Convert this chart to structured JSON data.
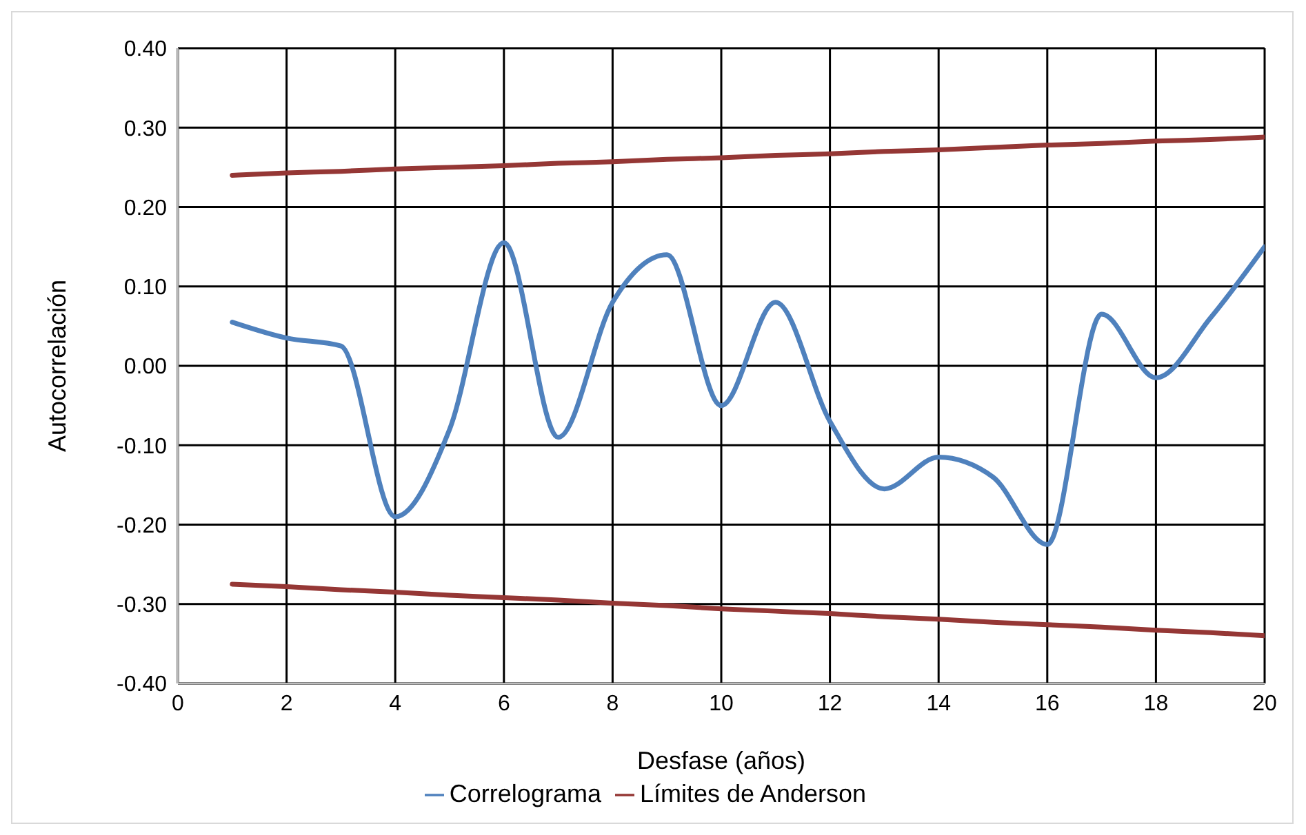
{
  "chart_data": {
    "type": "line",
    "xlabel": "Desfase (años)",
    "ylabel": "Autocorrelación",
    "x": [
      1,
      2,
      3,
      4,
      5,
      6,
      7,
      8,
      9,
      10,
      11,
      12,
      13,
      14,
      15,
      16,
      17,
      18,
      19,
      20
    ],
    "series": [
      {
        "name": "Correlograma",
        "color": "#4f81bd",
        "values": [
          0.055,
          0.035,
          0.025,
          -0.19,
          -0.08,
          0.155,
          -0.09,
          0.08,
          0.14,
          -0.05,
          0.08,
          -0.07,
          -0.155,
          -0.115,
          -0.14,
          -0.225,
          0.065,
          -0.015,
          0.06,
          0.15
        ]
      },
      {
        "name": "Límites de Anderson",
        "color": "#953735",
        "values": [
          0.24,
          0.243,
          0.245,
          0.248,
          0.25,
          0.252,
          0.255,
          0.257,
          0.26,
          0.262,
          0.265,
          0.267,
          0.27,
          0.272,
          0.275,
          0.278,
          0.28,
          0.283,
          0.285,
          0.288
        ]
      },
      {
        "name": null,
        "color": "#953735",
        "values": [
          -0.275,
          -0.278,
          -0.282,
          -0.285,
          -0.289,
          -0.292,
          -0.295,
          -0.299,
          -0.302,
          -0.306,
          -0.309,
          -0.312,
          -0.316,
          -0.319,
          -0.323,
          -0.326,
          -0.329,
          -0.333,
          -0.336,
          -0.34
        ]
      }
    ],
    "xlim": [
      0,
      20
    ],
    "xticks": [
      0,
      2,
      4,
      6,
      8,
      10,
      12,
      14,
      16,
      18,
      20
    ],
    "ylim": [
      -0.4,
      0.4
    ],
    "yticks": [
      {
        "value": -0.4,
        "label": "-0.40"
      },
      {
        "value": -0.3,
        "label": "-0.30"
      },
      {
        "value": -0.2,
        "label": "-0.20"
      },
      {
        "value": -0.1,
        "label": "-0.10"
      },
      {
        "value": 0,
        "label": "0.00"
      },
      {
        "value": 0.1,
        "label": "0.10"
      },
      {
        "value": 0.2,
        "label": "0.20"
      },
      {
        "value": 0.3,
        "label": "0.30"
      },
      {
        "value": 0.4,
        "label": "0.40"
      }
    ],
    "grid": true,
    "legend": "bottom",
    "marker": "none",
    "line_style": "solid"
  }
}
